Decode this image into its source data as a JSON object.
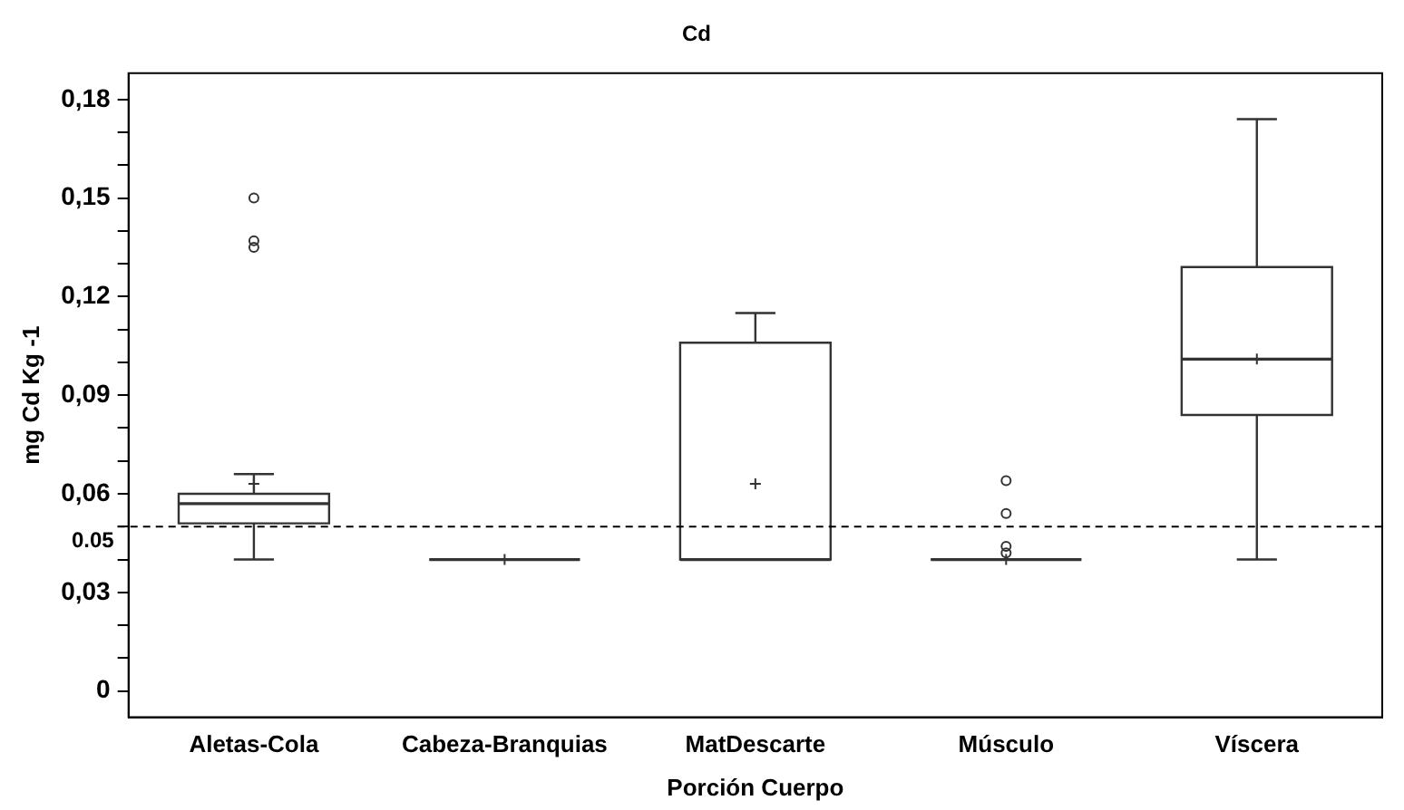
{
  "chart_data": {
    "type": "box",
    "title": "Cd",
    "xlabel": "Porción Cuerpo",
    "ylabel": "mg Cd Kg -1",
    "categories": [
      "Aletas-Cola",
      "Cabeza-Branquias",
      "MatDescarte",
      "Músculo",
      "Víscera"
    ],
    "boxes": [
      {
        "low": 0.04,
        "q1": 0.051,
        "median": 0.057,
        "q3": 0.06,
        "high": 0.066,
        "mean": 0.063,
        "outliers": [
          0.15,
          0.137,
          0.135
        ]
      },
      {
        "low": 0.04,
        "q1": 0.04,
        "median": 0.04,
        "q3": 0.04,
        "high": 0.04,
        "mean": 0.04
      },
      {
        "low": 0.04,
        "q1": 0.04,
        "median": 0.04,
        "q3": 0.106,
        "high": 0.115,
        "mean": 0.063
      },
      {
        "low": 0.04,
        "q1": 0.04,
        "median": 0.04,
        "q3": 0.04,
        "high": 0.04,
        "mean": 0.04,
        "outliers": [
          0.064,
          0.054,
          0.044,
          0.042
        ]
      },
      {
        "low": 0.04,
        "q1": 0.084,
        "median": 0.101,
        "q3": 0.129,
        "high": 0.174,
        "mean": 0.101
      }
    ],
    "ylim": [
      -0.008,
      0.188
    ],
    "yticks": [
      {
        "value": 0,
        "label": "0"
      },
      {
        "value": 0.01,
        "label": null
      },
      {
        "value": 0.02,
        "label": null
      },
      {
        "value": 0.03,
        "label": "0,03"
      },
      {
        "value": 0.04,
        "label": null
      },
      {
        "value": 0.05,
        "label": null
      },
      {
        "value": 0.06,
        "label": "0,06"
      },
      {
        "value": 0.07,
        "label": null
      },
      {
        "value": 0.08,
        "label": null
      },
      {
        "value": 0.09,
        "label": "0,09"
      },
      {
        "value": 0.1,
        "label": null
      },
      {
        "value": 0.11,
        "label": null
      },
      {
        "value": 0.12,
        "label": "0,12"
      },
      {
        "value": 0.13,
        "label": null
      },
      {
        "value": 0.14,
        "label": null
      },
      {
        "value": 0.15,
        "label": "0,15"
      },
      {
        "value": 0.16,
        "label": null
      },
      {
        "value": 0.17,
        "label": null
      },
      {
        "value": 0.18,
        "label": "0,18"
      }
    ],
    "ref_lines": [
      {
        "axis": "y",
        "value": 0.05,
        "label": "0.05",
        "color": "#000000",
        "line_style": "dashed"
      }
    ]
  }
}
